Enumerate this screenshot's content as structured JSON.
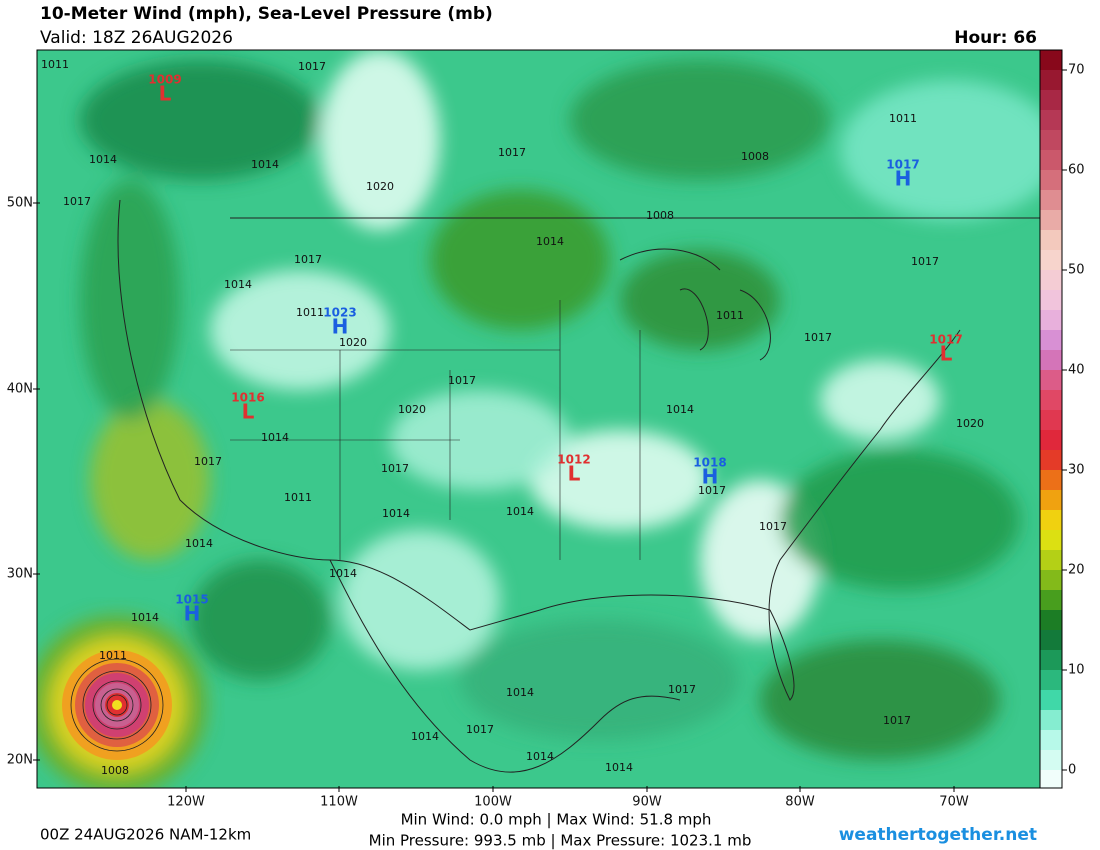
{
  "header": {
    "title": "10-Meter Wind (mph), Sea-Level Pressure (mb)",
    "valid": "Valid: 18Z 26AUG2026",
    "hour": "Hour: 66"
  },
  "colorbar": {
    "ticks": [
      0,
      10,
      20,
      30,
      40,
      50,
      60,
      70
    ]
  },
  "lat_labels": [
    "50N",
    "40N",
    "30N",
    "20N"
  ],
  "lon_labels": [
    "120W",
    "110W",
    "100W",
    "90W",
    "80W",
    "70W"
  ],
  "centers": [
    {
      "symbol": "L",
      "pressure": 1009
    },
    {
      "symbol": "H",
      "pressure": 1017
    },
    {
      "symbol": "H",
      "pressure": 1023
    },
    {
      "symbol": "L",
      "pressure": 1016
    },
    {
      "symbol": "L",
      "pressure": 1012
    },
    {
      "symbol": "H",
      "pressure": 1018
    },
    {
      "symbol": "L",
      "pressure": 1017
    },
    {
      "symbol": "H",
      "pressure": 1015
    }
  ],
  "isobar_labels": [
    1011,
    1017,
    1014,
    1014,
    1017,
    1020,
    1017,
    1008,
    1011,
    1008,
    1014,
    1017,
    1014,
    1017,
    1011,
    1020,
    1011,
    1017,
    1017,
    1014,
    1020,
    1020,
    1014,
    1017,
    1017,
    1017,
    1011,
    1014,
    1014,
    1017,
    1014,
    1014,
    1014,
    1011,
    1017,
    1014,
    1017,
    1014,
    1017,
    1014,
    1014,
    1008
  ],
  "footer": {
    "run": "00Z 24AUG2026 NAM-12km",
    "wind": "Min Wind:  0.0 mph | Max Wind:  51.8 mph",
    "pressure": "Min Pressure: 993.5 mb | Max Pressure: 1023.1 mb",
    "site": "weathertogether.net"
  }
}
